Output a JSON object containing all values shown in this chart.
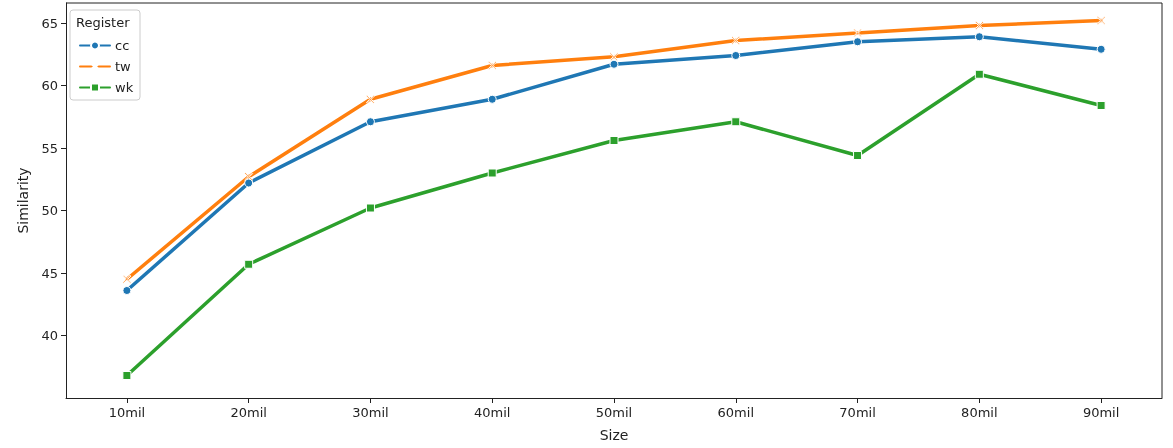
{
  "chart_data": {
    "type": "line",
    "xlabel": "Size",
    "ylabel": "Similarity",
    "legend_title": "Register",
    "legend": "top left",
    "grid": false,
    "categories": [
      "10mil",
      "20mil",
      "30mil",
      "40mil",
      "50mil",
      "60mil",
      "70mil",
      "80mil",
      "90mil"
    ],
    "ylim": [
      35,
      66.6
    ],
    "yticks": [
      40,
      45,
      50,
      55,
      60,
      65
    ],
    "series": [
      {
        "name": "cc",
        "color": "#1f77b4",
        "marker": "circle",
        "values": [
          43.6,
          52.2,
          57.1,
          58.9,
          61.7,
          62.4,
          63.5,
          63.9,
          62.9
        ]
      },
      {
        "name": "tw",
        "color": "#ff7f0e",
        "marker": "cross",
        "values": [
          44.5,
          52.7,
          58.9,
          61.6,
          62.3,
          63.6,
          64.2,
          64.8,
          65.2
        ]
      },
      {
        "name": "wk",
        "color": "#2ca02c",
        "marker": "square",
        "values": [
          36.8,
          45.7,
          50.2,
          53.0,
          55.6,
          57.1,
          54.4,
          60.9,
          58.4
        ]
      }
    ]
  }
}
